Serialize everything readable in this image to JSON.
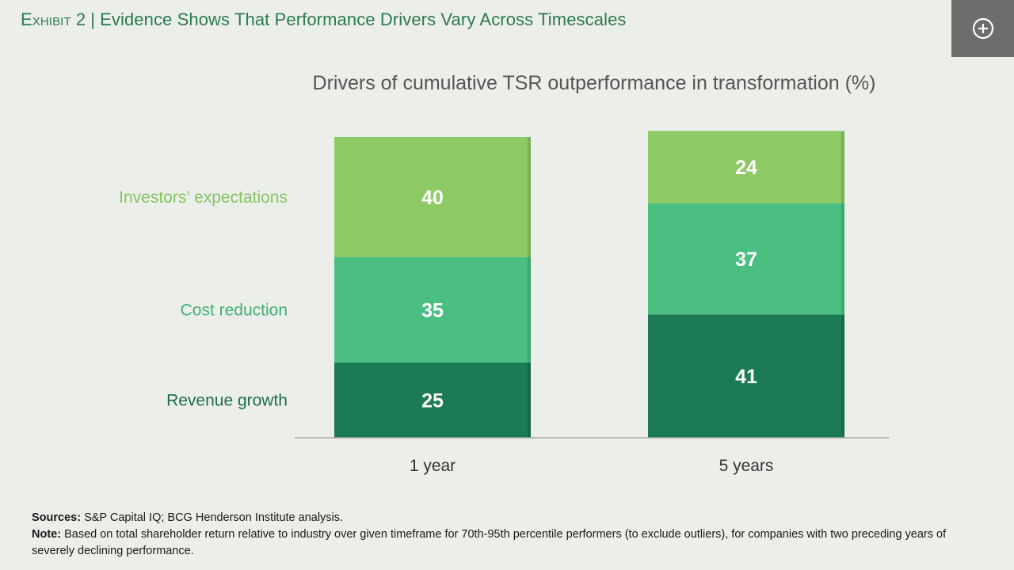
{
  "header": {
    "exhibit_label": "Exhibit 2",
    "separator": "|",
    "title": "Evidence Shows That Performance Drivers Vary Across Timescales"
  },
  "expand_button": {
    "icon": "plus-circle-icon"
  },
  "chart_data": {
    "type": "bar",
    "stacked": true,
    "title": "Drivers of cumulative TSR outperformance in transformation (%)",
    "categories": [
      "1 year",
      "5 years"
    ],
    "series": [
      {
        "name": "Revenue growth",
        "values": [
          25,
          41
        ],
        "color": "#1c7a55",
        "label_color": "#1c6e4c"
      },
      {
        "name": "Cost reduction",
        "values": [
          35,
          37
        ],
        "color": "#4bbe81",
        "label_color": "#3fae73"
      },
      {
        "name": "Investors’ expectations",
        "values": [
          40,
          24
        ],
        "color": "#8dc965",
        "label_color": "#86c462"
      }
    ],
    "ylim": [
      0,
      100
    ],
    "grid": false,
    "legend": "left"
  },
  "footer": {
    "sources_label": "Sources:",
    "sources_text": "S&P Capital IQ; BCG Henderson Institute analysis.",
    "note_label": "Note:",
    "note_text": "Based on total shareholder return relative to industry over given timeframe for 70th-95th percentile performers (to exclude outliers), for companies with two preceding years of severely declining performance."
  }
}
